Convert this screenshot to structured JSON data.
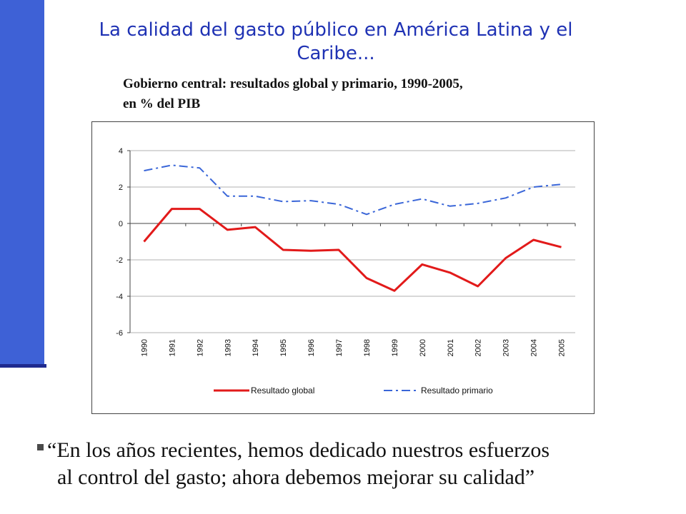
{
  "slide": {
    "title_line1": "La calidad del gasto público en América Latina y el",
    "title_line2": "Caribe...",
    "chart_heading_line1": "Gobierno central: resultados global y primario, 1990-2005,",
    "chart_heading_line2": "en % del PIB",
    "quote_line1": "“En los años recientes, hemos dedicado nuestros esfuerzos",
    "quote_line2": "al control del gasto; ahora debemos mejorar su calidad”",
    "accent_color": "#3e61d6",
    "title_color": "#1f32b4"
  },
  "chart_data": {
    "type": "line",
    "title": "Gobierno central: resultados global y primario, 1990-2005, en % del PIB",
    "xlabel": "",
    "ylabel": "",
    "categories": [
      "1990",
      "1991",
      "1992",
      "1993",
      "1994",
      "1995",
      "1996",
      "1997",
      "1998",
      "1999",
      "2000",
      "2001",
      "2002",
      "2003",
      "2004",
      "2005"
    ],
    "ylim": [
      -6,
      4
    ],
    "yticks": [
      4,
      2,
      0,
      -2,
      -4,
      -6
    ],
    "grid": true,
    "legend_position": "bottom",
    "series": [
      {
        "name": "Resultado global",
        "color": "#e21a1a",
        "style": "solid",
        "values": [
          -1.0,
          0.8,
          0.8,
          -0.35,
          -0.2,
          -1.45,
          -1.5,
          -1.45,
          -3.0,
          -3.7,
          -2.25,
          -2.7,
          -3.45,
          -1.9,
          -0.9,
          -1.3
        ]
      },
      {
        "name": "Resultado primario",
        "color": "#3a66d8",
        "style": "dash-dot",
        "values": [
          2.9,
          3.2,
          3.05,
          1.5,
          1.5,
          1.2,
          1.25,
          1.05,
          0.5,
          1.05,
          1.35,
          0.95,
          1.1,
          1.4,
          2.0,
          2.15
        ]
      }
    ]
  }
}
